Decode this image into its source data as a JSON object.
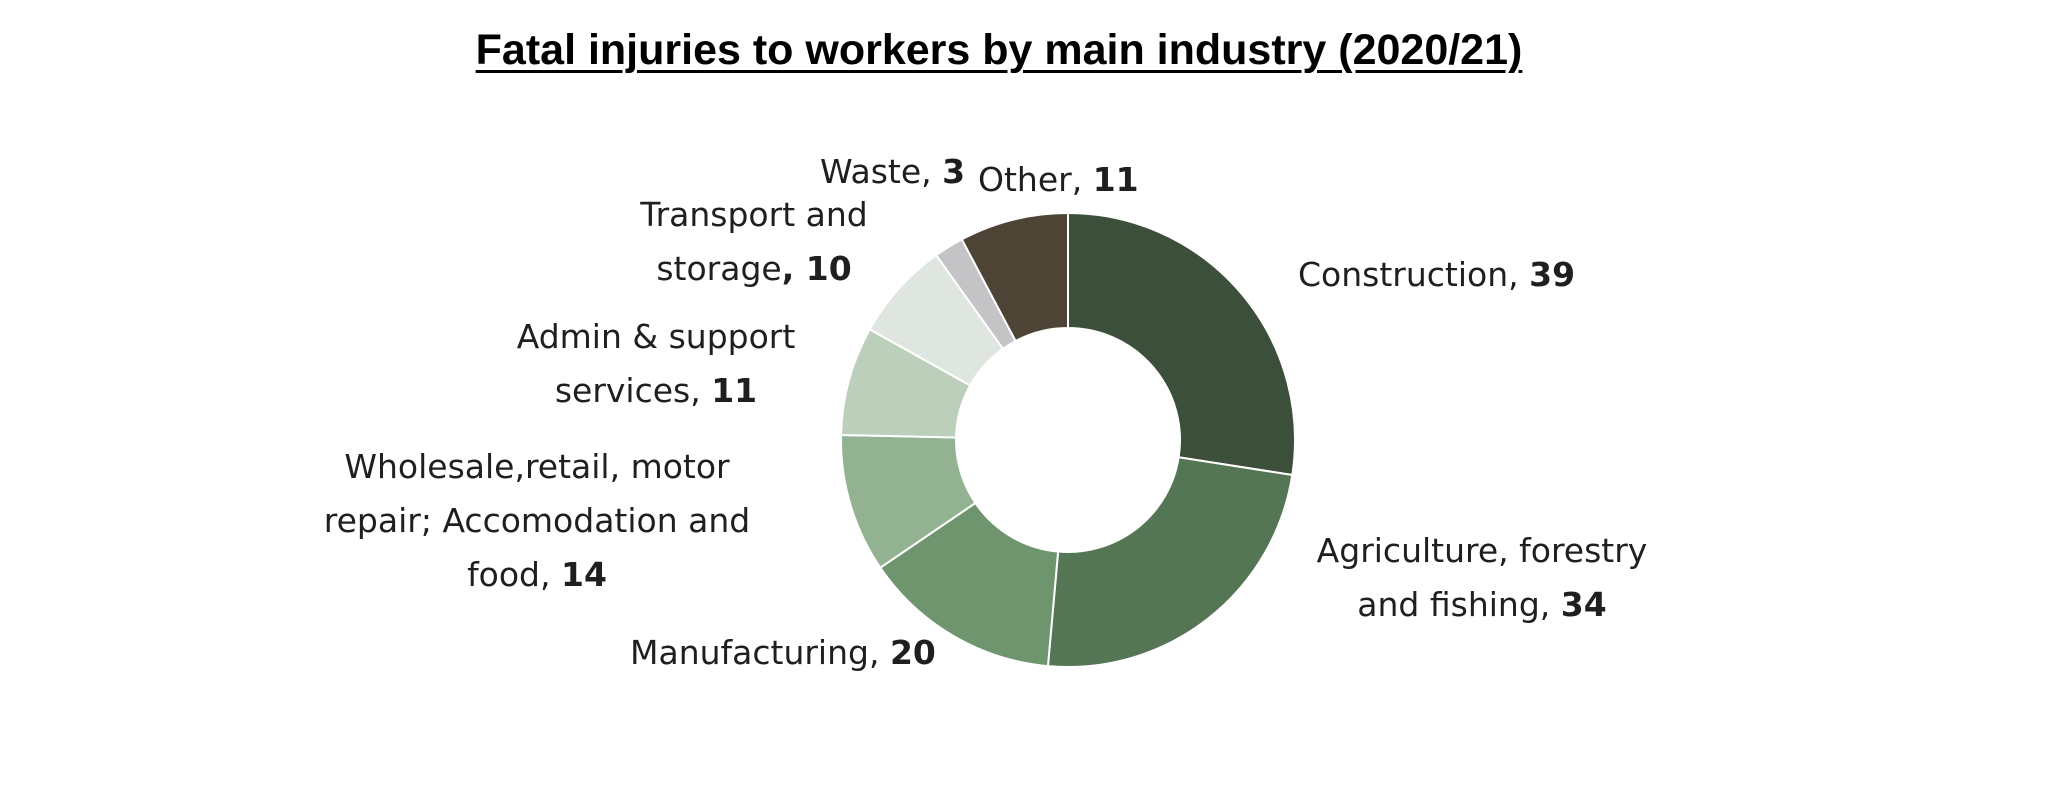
{
  "chart_data": {
    "type": "pie",
    "title": "Fatal injuries to workers by main industry (2020/21)",
    "donut": true,
    "slices": [
      {
        "label": "Construction",
        "value": 39,
        "color": "#3c4f3b"
      },
      {
        "label": "Agriculture, forestry and fishing",
        "value": 34,
        "color": "#557654"
      },
      {
        "label": "Manufacturing",
        "value": 20,
        "color": "#6f956f"
      },
      {
        "label": "Wholesale,retail, motor repair; Accomodation and food",
        "value": 14,
        "color": "#93b291"
      },
      {
        "label": "Admin & support services",
        "value": 11,
        "color": "#bccfbb"
      },
      {
        "label": "Transport and storage",
        "value": 10,
        "color": "#dfe6df"
      },
      {
        "label": "Waste",
        "value": 3,
        "color": "#c4c4c6"
      },
      {
        "label": "Other",
        "value": 11,
        "color": "#4e4436"
      }
    ],
    "labels": [
      {
        "lines": [
          {
            "text": "Construction, ",
            "value": "39"
          }
        ]
      },
      {
        "lines": [
          {
            "text": "Agriculture, forestry",
            "value": ""
          },
          {
            "text": "and fishing, ",
            "value": "34"
          }
        ]
      },
      {
        "lines": [
          {
            "text": "Manufacturing, ",
            "value": "20"
          }
        ]
      },
      {
        "lines": [
          {
            "text": "Wholesale,retail, motor",
            "value": ""
          },
          {
            "text": "repair; Accomodation and",
            "value": ""
          },
          {
            "text": "food, ",
            "value": "14"
          }
        ]
      },
      {
        "lines": [
          {
            "text": "Admin & support",
            "value": ""
          },
          {
            "text": "services, ",
            "value": "11"
          }
        ]
      },
      {
        "lines": [
          {
            "text": "Transport and",
            "value": ""
          },
          {
            "text": "storage",
            "value": ", 10"
          }
        ]
      },
      {
        "lines": [
          {
            "text": "Waste, ",
            "value": "3"
          }
        ]
      },
      {
        "lines": [
          {
            "text": "Other, ",
            "value": "11"
          }
        ]
      }
    ]
  }
}
